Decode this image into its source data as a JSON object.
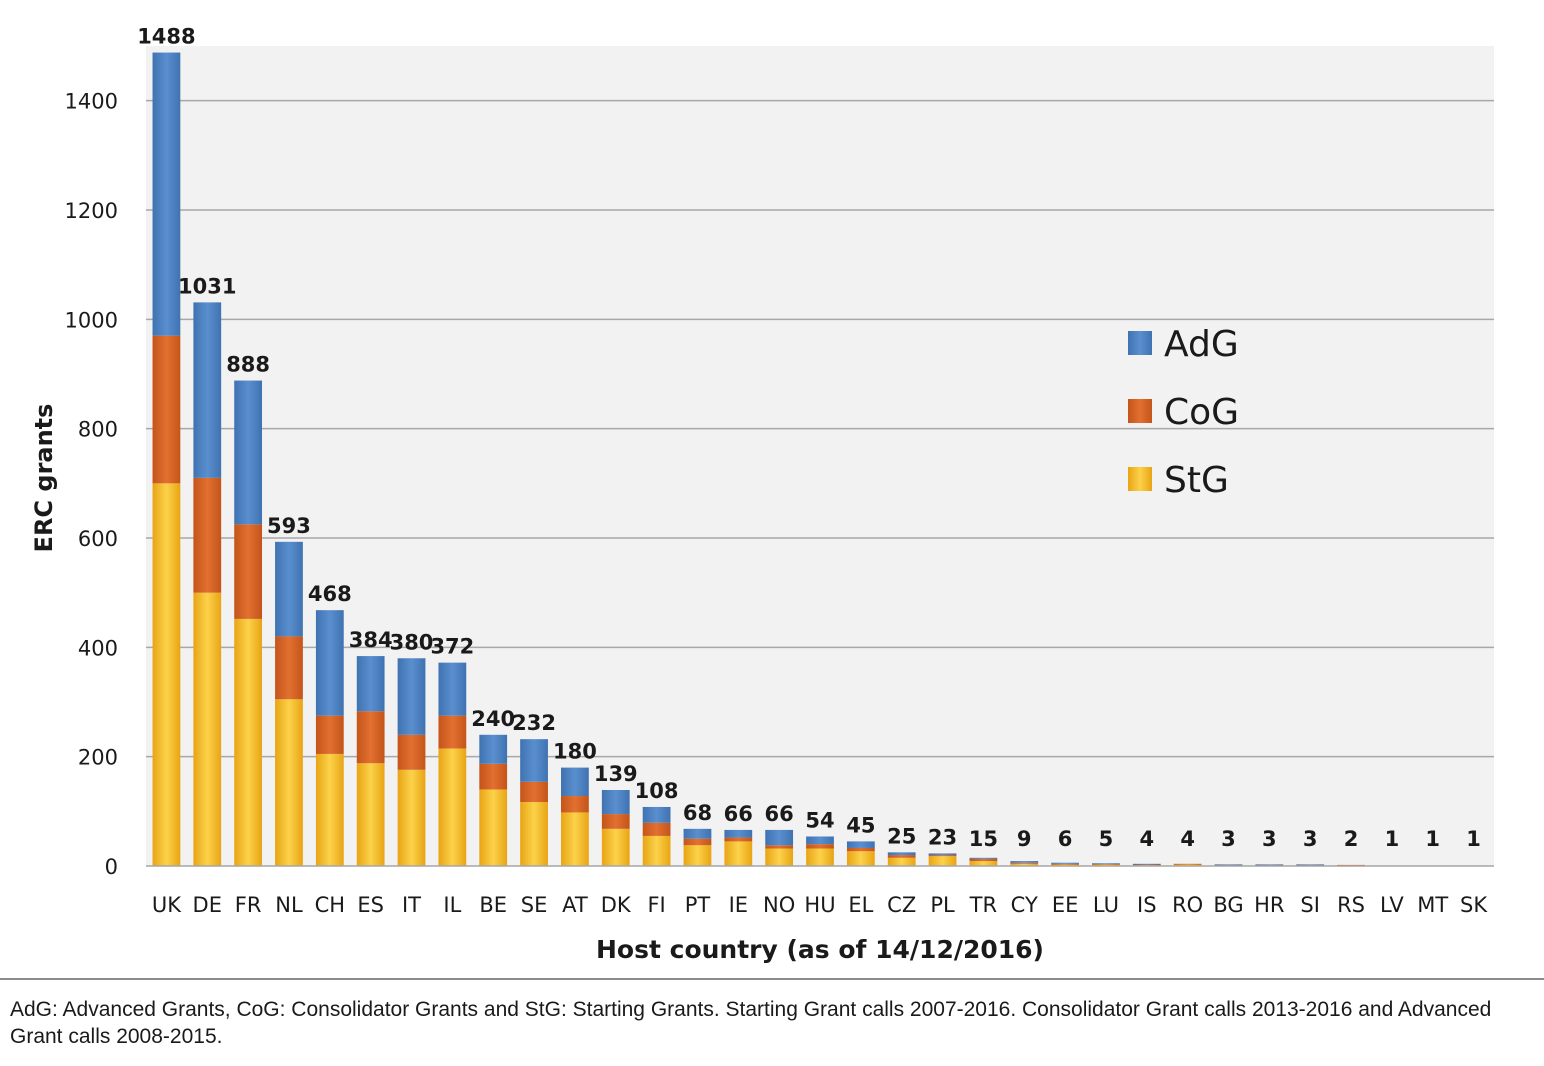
{
  "chart_data": {
    "type": "bar",
    "stacked": true,
    "xlabel": "Host country (as of 14/12/2016)",
    "ylabel": "ERC grants",
    "ylim": [
      0,
      1500
    ],
    "yticks": [
      0,
      200,
      400,
      600,
      800,
      1000,
      1200,
      1400
    ],
    "grid": true,
    "legend_position": "right",
    "categories": [
      "UK",
      "DE",
      "FR",
      "NL",
      "CH",
      "ES",
      "IT",
      "IL",
      "BE",
      "SE",
      "AT",
      "DK",
      "FI",
      "PT",
      "IE",
      "NO",
      "HU",
      "EL",
      "CZ",
      "PL",
      "TR",
      "CY",
      "EE",
      "LU",
      "IS",
      "RO",
      "BG",
      "HR",
      "SI",
      "RS",
      "LV",
      "MT",
      "SK"
    ],
    "totals": [
      1488,
      1031,
      888,
      593,
      468,
      384,
      380,
      372,
      240,
      232,
      180,
      139,
      108,
      68,
      66,
      66,
      54,
      45,
      25,
      23,
      15,
      9,
      6,
      5,
      4,
      4,
      3,
      3,
      3,
      2,
      1,
      1,
      1
    ],
    "series": [
      {
        "name": "StG",
        "color": "#f0b21c",
        "values": [
          700,
          500,
          452,
          305,
          205,
          188,
          176,
          215,
          140,
          117,
          98,
          68,
          55,
          38,
          45,
          32,
          32,
          27,
          15,
          18,
          9,
          4,
          3,
          3,
          2,
          3,
          1,
          1,
          1,
          1,
          1,
          0,
          1
        ]
      },
      {
        "name": "CoG",
        "color": "#d2611c",
        "values": [
          270,
          210,
          173,
          115,
          70,
          95,
          64,
          60,
          47,
          37,
          30,
          27,
          24,
          12,
          7,
          6,
          8,
          6,
          5,
          2,
          4,
          2,
          1,
          1,
          1,
          1,
          1,
          1,
          1,
          1,
          0,
          0,
          0
        ]
      },
      {
        "name": "AdG",
        "color": "#4f81bd",
        "values": [
          518,
          321,
          263,
          173,
          193,
          101,
          140,
          97,
          53,
          78,
          52,
          44,
          29,
          18,
          14,
          28,
          14,
          12,
          5,
          3,
          2,
          3,
          2,
          1,
          1,
          0,
          1,
          1,
          1,
          0,
          0,
          1,
          0
        ]
      }
    ],
    "legend": [
      "AdG",
      "CoG",
      "StG"
    ]
  },
  "caption": "AdG: Advanced Grants, CoG: Consolidator Grants and StG: Starting Grants. Starting Grant calls 2007-2016. Consolidator Grant calls 2013-2016 and Advanced Grant calls 2008-2015."
}
